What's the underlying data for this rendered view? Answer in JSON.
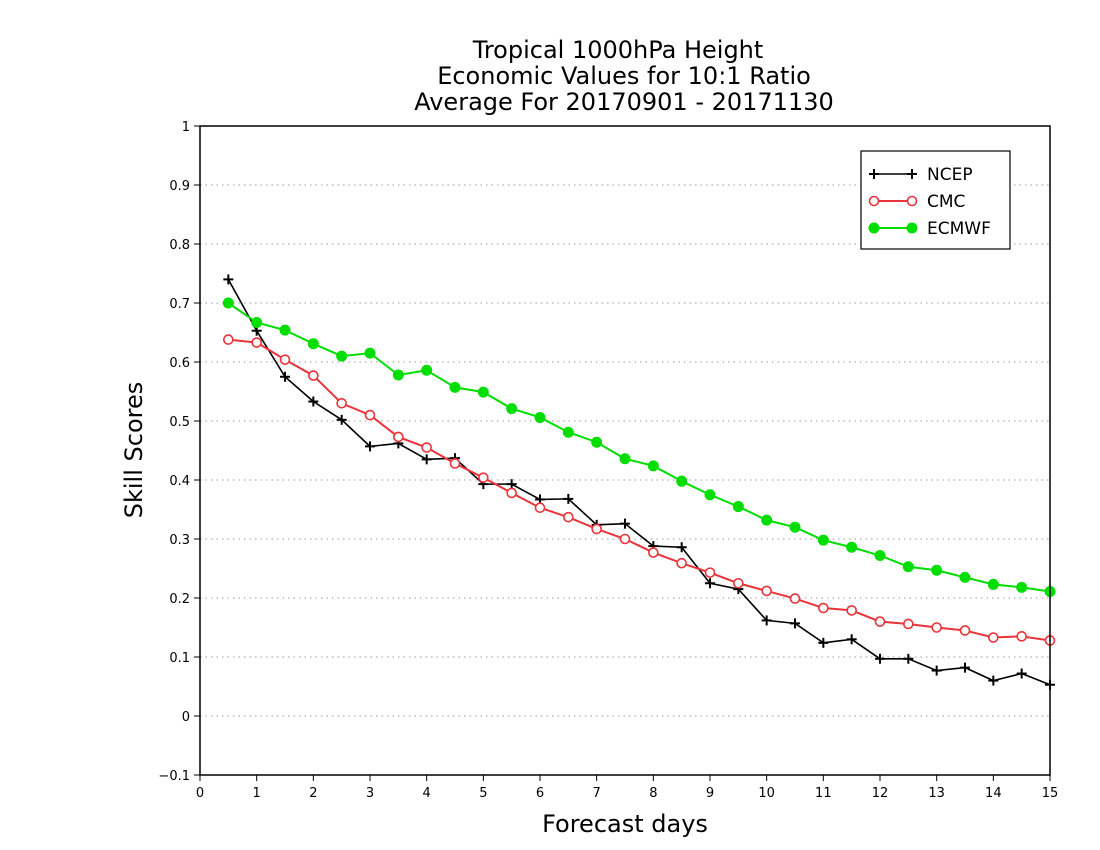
{
  "chart_data": {
    "type": "line",
    "title_lines": [
      "Tropical 1000hPa Height",
      "Economic Values for 10:1 Ratio",
      "Average For 20170901 - 20171130"
    ],
    "xlabel": "Forecast days",
    "ylabel": "Skill Scores",
    "xlim": [
      0,
      15
    ],
    "ylim": [
      -0.1,
      1
    ],
    "x_ticks": [
      "0",
      "1",
      "2",
      "3",
      "4",
      "5",
      "6",
      "7",
      "8",
      "9",
      "10",
      "11",
      "12",
      "13",
      "14",
      "15"
    ],
    "y_ticks": [
      "−0.1",
      "0",
      "0.1",
      "0.2",
      "0.3",
      "0.4",
      "0.5",
      "0.6",
      "0.7",
      "0.8",
      "0.9",
      "1"
    ],
    "grid": "horizontal-dotted",
    "legend_position": "top-right",
    "x": [
      0.5,
      1,
      1.5,
      2,
      2.5,
      3,
      3.5,
      4,
      4.5,
      5,
      5.5,
      6,
      6.5,
      7,
      7.5,
      8,
      8.5,
      9,
      9.5,
      10,
      10.5,
      11,
      11.5,
      12,
      12.5,
      13,
      13.5,
      14,
      14.5,
      15
    ],
    "series": [
      {
        "name": "NCEP",
        "color": "#000000",
        "marker": "plus",
        "values": [
          0.74,
          0.653,
          0.575,
          0.533,
          0.502,
          0.457,
          0.462,
          0.435,
          0.437,
          0.393,
          0.393,
          0.367,
          0.368,
          0.324,
          0.326,
          0.288,
          0.286,
          0.225,
          0.215,
          0.162,
          0.157,
          0.124,
          0.13,
          0.097,
          0.097,
          0.077,
          0.082,
          0.06,
          0.072,
          0.053
        ]
      },
      {
        "name": "CMC",
        "color": "#e8343a",
        "marker": "open-circle",
        "values": [
          0.638,
          0.633,
          0.604,
          0.577,
          0.53,
          0.51,
          0.473,
          0.455,
          0.428,
          0.404,
          0.378,
          0.353,
          0.337,
          0.317,
          0.3,
          0.277,
          0.259,
          0.243,
          0.225,
          0.212,
          0.199,
          0.183,
          0.179,
          0.16,
          0.156,
          0.15,
          0.145,
          0.133,
          0.135,
          0.128
        ]
      },
      {
        "name": "ECMWF",
        "color": "#00dd00",
        "marker": "filled-circle",
        "values": [
          0.7,
          0.667,
          0.654,
          0.631,
          0.61,
          0.615,
          0.578,
          0.586,
          0.557,
          0.549,
          0.521,
          0.506,
          0.481,
          0.464,
          0.436,
          0.424,
          0.398,
          0.375,
          0.355,
          0.332,
          0.32,
          0.298,
          0.286,
          0.272,
          0.253,
          0.247,
          0.235,
          0.223,
          0.218,
          0.211
        ]
      }
    ]
  }
}
